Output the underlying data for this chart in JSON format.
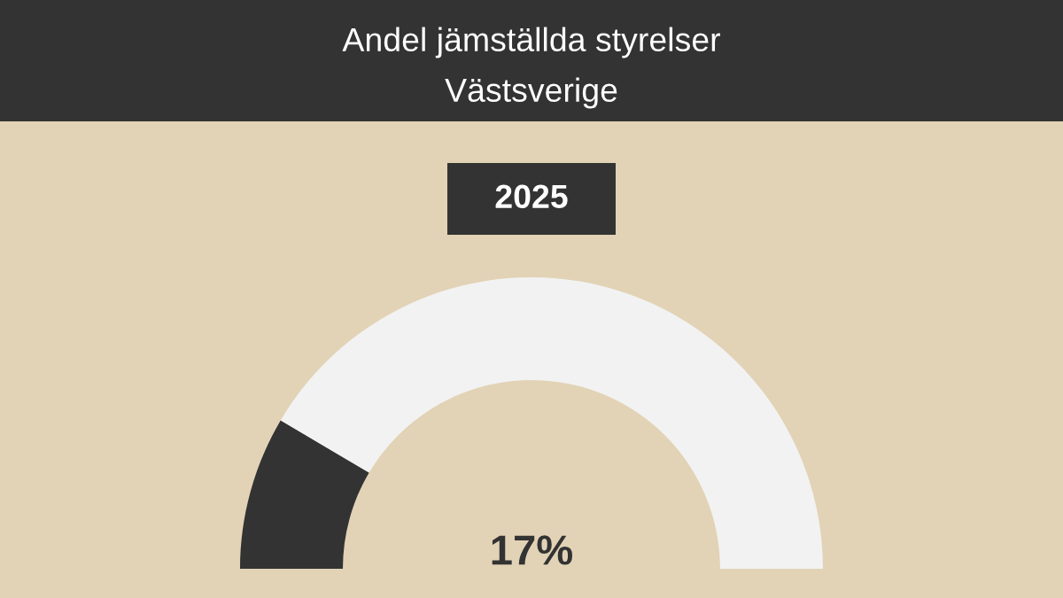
{
  "chart_data": {
    "type": "donut",
    "title": "Andel jämställda styrelser",
    "subtitle": "Västsverige",
    "annotations": [
      "2025",
      "17%"
    ],
    "categories": [
      null,
      null
    ],
    "values": [
      17,
      83
    ],
    "colors": [
      "#333333",
      "#f2f2f2"
    ]
  }
}
